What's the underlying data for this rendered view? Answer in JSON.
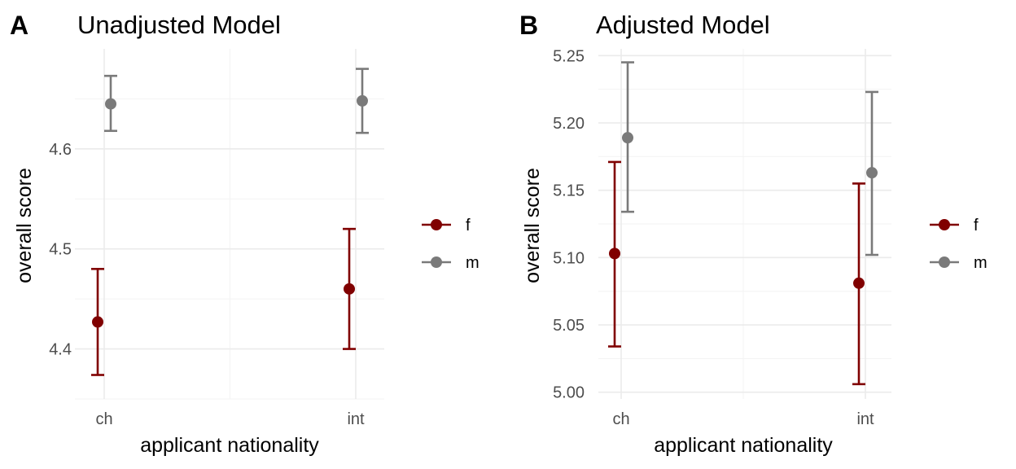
{
  "chart_data": [
    {
      "panel_label": "A",
      "type": "scatter",
      "title": "Unadjusted Model",
      "xlabel": "applicant nationality",
      "ylabel": "overall score",
      "categories": [
        "ch",
        "int"
      ],
      "ylim": [
        4.35,
        4.7
      ],
      "yticks": [
        4.4,
        4.5,
        4.6
      ],
      "ytick_labels": [
        "4.4",
        "4.5",
        "4.6"
      ],
      "grid": true,
      "legend_position": "right",
      "series": [
        {
          "name": "f",
          "color": "#800000",
          "points": [
            {
              "x": "ch",
              "y": 4.427,
              "lower": 4.374,
              "upper": 4.48
            },
            {
              "x": "int",
              "y": 4.46,
              "lower": 4.4,
              "upper": 4.52
            }
          ]
        },
        {
          "name": "m",
          "color": "#7a7a7a",
          "points": [
            {
              "x": "ch",
              "y": 4.645,
              "lower": 4.618,
              "upper": 4.673
            },
            {
              "x": "int",
              "y": 4.648,
              "lower": 4.616,
              "upper": 4.68
            }
          ]
        }
      ]
    },
    {
      "panel_label": "B",
      "type": "scatter",
      "title": "Adjusted Model",
      "xlabel": "applicant nationality",
      "ylabel": "overall score",
      "categories": [
        "ch",
        "int"
      ],
      "ylim": [
        4.995,
        5.255
      ],
      "yticks": [
        5.0,
        5.05,
        5.1,
        5.15,
        5.2,
        5.25
      ],
      "ytick_labels": [
        "5.00",
        "5.05",
        "5.10",
        "5.15",
        "5.20",
        "5.25"
      ],
      "grid": true,
      "legend_position": "right",
      "series": [
        {
          "name": "f",
          "color": "#800000",
          "points": [
            {
              "x": "ch",
              "y": 5.103,
              "lower": 5.034,
              "upper": 5.171
            },
            {
              "x": "int",
              "y": 5.081,
              "lower": 5.006,
              "upper": 5.155
            }
          ]
        },
        {
          "name": "m",
          "color": "#7a7a7a",
          "points": [
            {
              "x": "ch",
              "y": 5.189,
              "lower": 5.134,
              "upper": 5.245
            },
            {
              "x": "int",
              "y": 5.163,
              "lower": 5.102,
              "upper": 5.223
            }
          ]
        }
      ]
    }
  ]
}
